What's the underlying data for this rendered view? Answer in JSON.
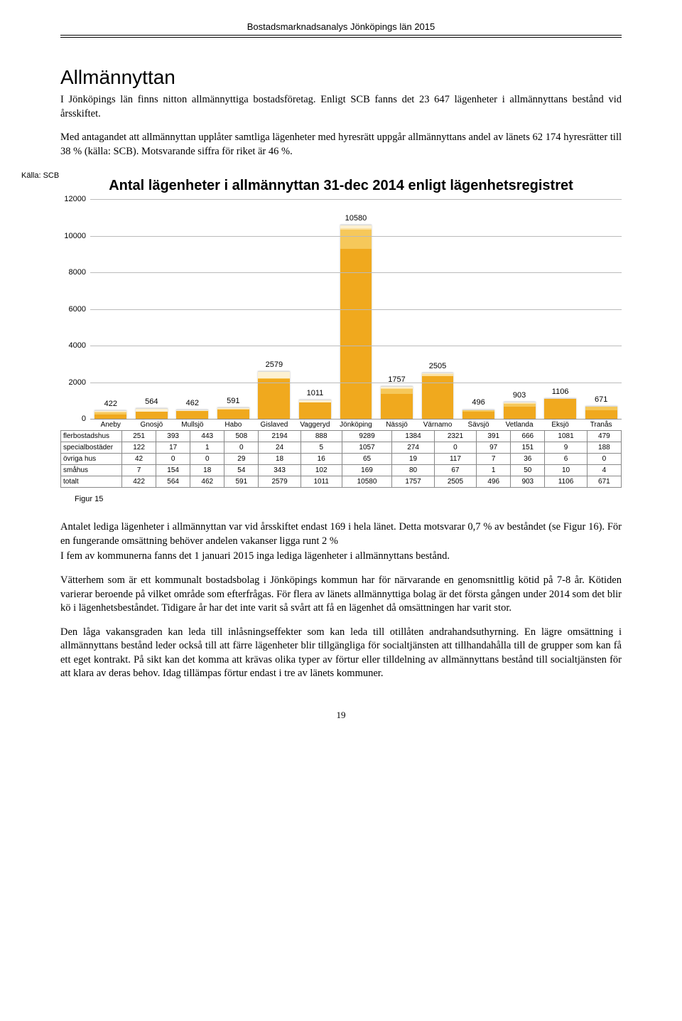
{
  "header": "Bostadsmarknadsanalys Jönköpings län 2015",
  "section_title": "Allmännyttan",
  "para1": "I Jönköpings län finns nitton allmännyttiga bostadsföretag. Enligt SCB fanns det 23 647 lägenheter i allmännyttans bestånd vid årsskiftet.",
  "para2": "Med antagandet att allmännyttan upplåter samtliga lägenheter med hyresrätt uppgår allmännyttans andel av länets 62 174 hyresrätter till 38 % (källa: SCB). Motsvarande siffra för riket är 46 %.",
  "source_label": "Källa: SCB",
  "chart": {
    "title": "Antal lägenheter i allmännyttan 31-dec 2014 enligt lägenhetsregistret",
    "ymax": 12000,
    "ytick_step": 2000,
    "categories": [
      "Aneby",
      "Gnosjö",
      "Mullsjö",
      "Habo",
      "Gislaved",
      "Vaggeryd",
      "Jönköping",
      "Nässjö",
      "Värnamo",
      "Sävsjö",
      "Vetlanda",
      "Eksjö",
      "Tranås"
    ],
    "series": [
      {
        "name": "flerbostadshus",
        "color": "#f0a91e",
        "values": [
          251,
          393,
          443,
          508,
          2194,
          888,
          9289,
          1384,
          2321,
          391,
          666,
          1081,
          479
        ]
      },
      {
        "name": "specialbostäder",
        "color": "#f6c85a",
        "values": [
          122,
          17,
          1,
          0,
          24,
          5,
          1057,
          274,
          0,
          97,
          151,
          9,
          188
        ]
      },
      {
        "name": "övriga hus",
        "color": "#fbe0a0",
        "values": [
          42,
          0,
          0,
          29,
          18,
          16,
          65,
          19,
          117,
          7,
          36,
          6,
          0
        ]
      },
      {
        "name": "småhus",
        "color": "#fdf1d2",
        "values": [
          7,
          154,
          18,
          54,
          343,
          102,
          169,
          80,
          67,
          1,
          50,
          10,
          4
        ]
      }
    ],
    "totals": [
      422,
      564,
      462,
      591,
      2579,
      1011,
      10580,
      1757,
      2505,
      496,
      903,
      1106,
      671
    ],
    "table_rows": [
      "flerbostadshus",
      "specialbostäder",
      "övriga hus",
      "småhus",
      "totalt"
    ],
    "background": "#ffffff",
    "grid_color": "#bbbbbb",
    "label_fontsize": 11
  },
  "fig_caption": "Figur 15",
  "para3": "Antalet lediga lägenheter i allmännyttan var vid årsskiftet endast 169 i hela länet. Detta motsvarar 0,7 % av beståndet (se Figur 16). För en fungerande omsättning behöver andelen vakanser ligga runt 2 %",
  "para4": "I fem av kommunerna fanns det 1 januari 2015 inga lediga lägenheter i allmännyttans bestånd.",
  "para5": "Vätterhem som är ett kommunalt bostadsbolag i Jönköpings kommun har för närvarande en genomsnittlig kötid på 7-8 år. Kötiden varierar beroende på vilket område som efterfrågas. För flera av länets allmännyttiga bolag är det första gången under 2014 som det blir kö i lägenhetsbeståndet. Tidigare år har det inte varit så svårt att få en lägenhet då omsättningen har varit stor.",
  "para6": "Den låga vakansgraden kan leda till inlåsningseffekter som kan leda till otillåten andrahandsuthyrning. En lägre omsättning i allmännyttans bestånd leder också till att färre lägenheter blir tillgängliga för socialtjänsten att tillhandahålla till de grupper som kan få ett eget kontrakt. På sikt kan det komma att krävas olika typer av förtur eller tilldelning av allmännyttans bestånd till socialtjänsten för att klara av deras behov. Idag tillämpas förtur endast i tre av länets kommuner.",
  "page_number": "19"
}
